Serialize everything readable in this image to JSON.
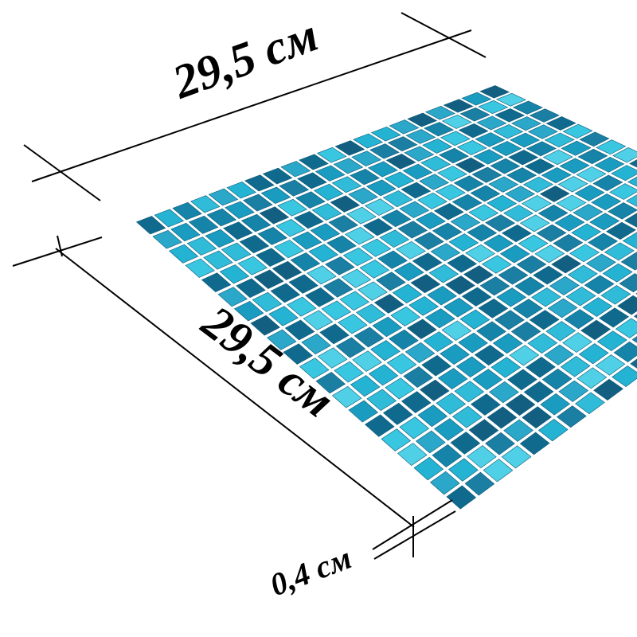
{
  "dimensions": {
    "width": "29,5 см",
    "length": "29,5 см",
    "thickness": "0,4 см"
  }
}
